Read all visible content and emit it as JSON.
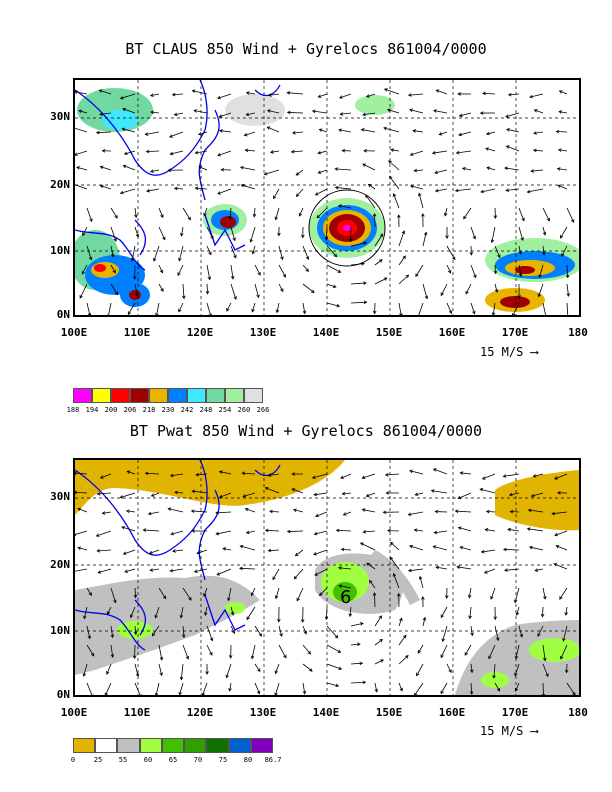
{
  "map1": {
    "title": "BT CLAUS 850 Wind + Gyrelocs 861004/0000",
    "lat_labels": [
      "30N",
      "20N",
      "10N",
      "0N"
    ],
    "lon_labels": [
      "100E",
      "110E",
      "120E",
      "130E",
      "140E",
      "150E",
      "160E",
      "170E",
      "180"
    ],
    "ref_vector": "15 M/S",
    "colorbar": {
      "colors": [
        "#ff00ff",
        "#ffff00",
        "#ff0000",
        "#a00000",
        "#e8b400",
        "#0080ff",
        "#40e8ff",
        "#70d8a0",
        "#a0f0a0",
        "#e0e0e0"
      ],
      "ticks": [
        "188",
        "194",
        "200",
        "206",
        "218",
        "230",
        "242",
        "248",
        "254",
        "260",
        "266"
      ]
    }
  },
  "map2": {
    "title": "BT Pwat 850 Wind + Gyrelocs 861004/0000",
    "lat_labels": [
      "30N",
      "20N",
      "10N",
      "0N"
    ],
    "lon_labels": [
      "100E",
      "110E",
      "120E",
      "130E",
      "140E",
      "150E",
      "160E",
      "170E",
      "180"
    ],
    "ref_vector": "15 M/S",
    "gyre_label": "6",
    "colorbar": {
      "colors": [
        "#e0b400",
        "#ffffff",
        "#c0c0c0",
        "#a0ff40",
        "#40c000",
        "#30a000",
        "#107000",
        "#0060d0",
        "#8000c0"
      ],
      "ticks": [
        "0",
        "25",
        "55",
        "60",
        "65",
        "70",
        "75",
        "80",
        "86.7"
      ]
    }
  }
}
